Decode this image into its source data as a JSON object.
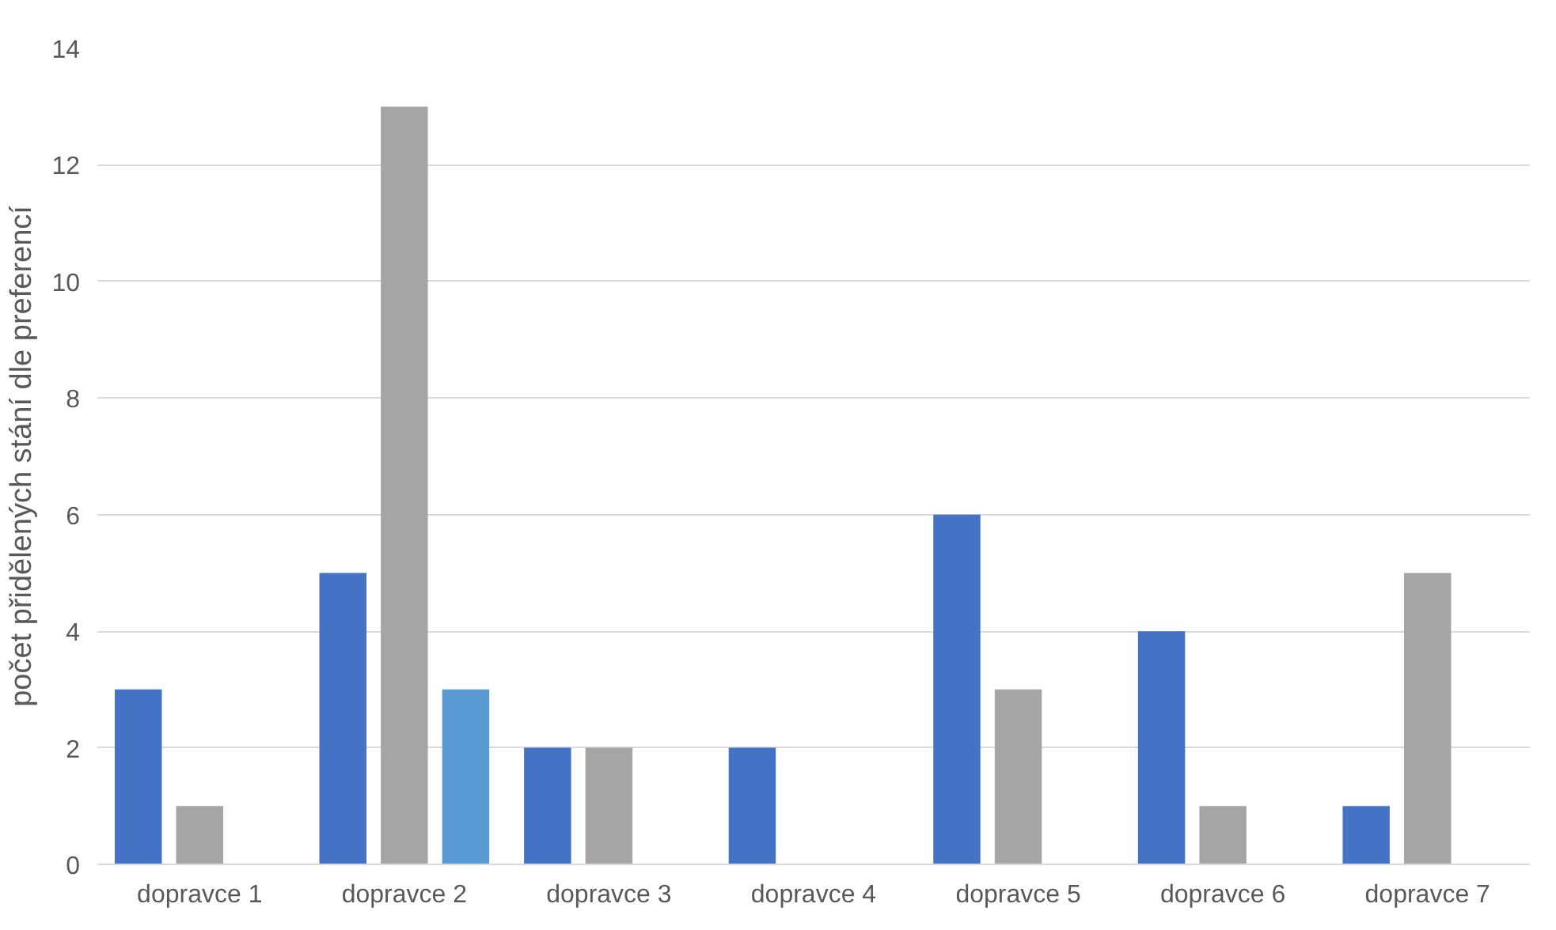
{
  "chart_data": {
    "type": "bar",
    "ylabel": "počet přidělených stání dle preferencí",
    "categories": [
      "dopravce 1",
      "dopravce 2",
      "dopravce 3",
      "dopravce 4",
      "dopravce 5",
      "dopravce 6",
      "dopravce 7"
    ],
    "series": [
      {
        "color": "#4472c4",
        "values": [
          3,
          5,
          2,
          2,
          6,
          4,
          1
        ]
      },
      {
        "color": "#a5a5a5",
        "values": [
          1,
          13,
          2,
          null,
          3,
          1,
          5
        ]
      },
      {
        "color": "#5b9bd5",
        "values": [
          null,
          3,
          null,
          null,
          null,
          null,
          null
        ]
      }
    ],
    "ylim": [
      0,
      14
    ],
    "yticks": [
      0,
      2,
      4,
      6,
      8,
      10,
      12,
      14
    ],
    "grid": "y"
  }
}
